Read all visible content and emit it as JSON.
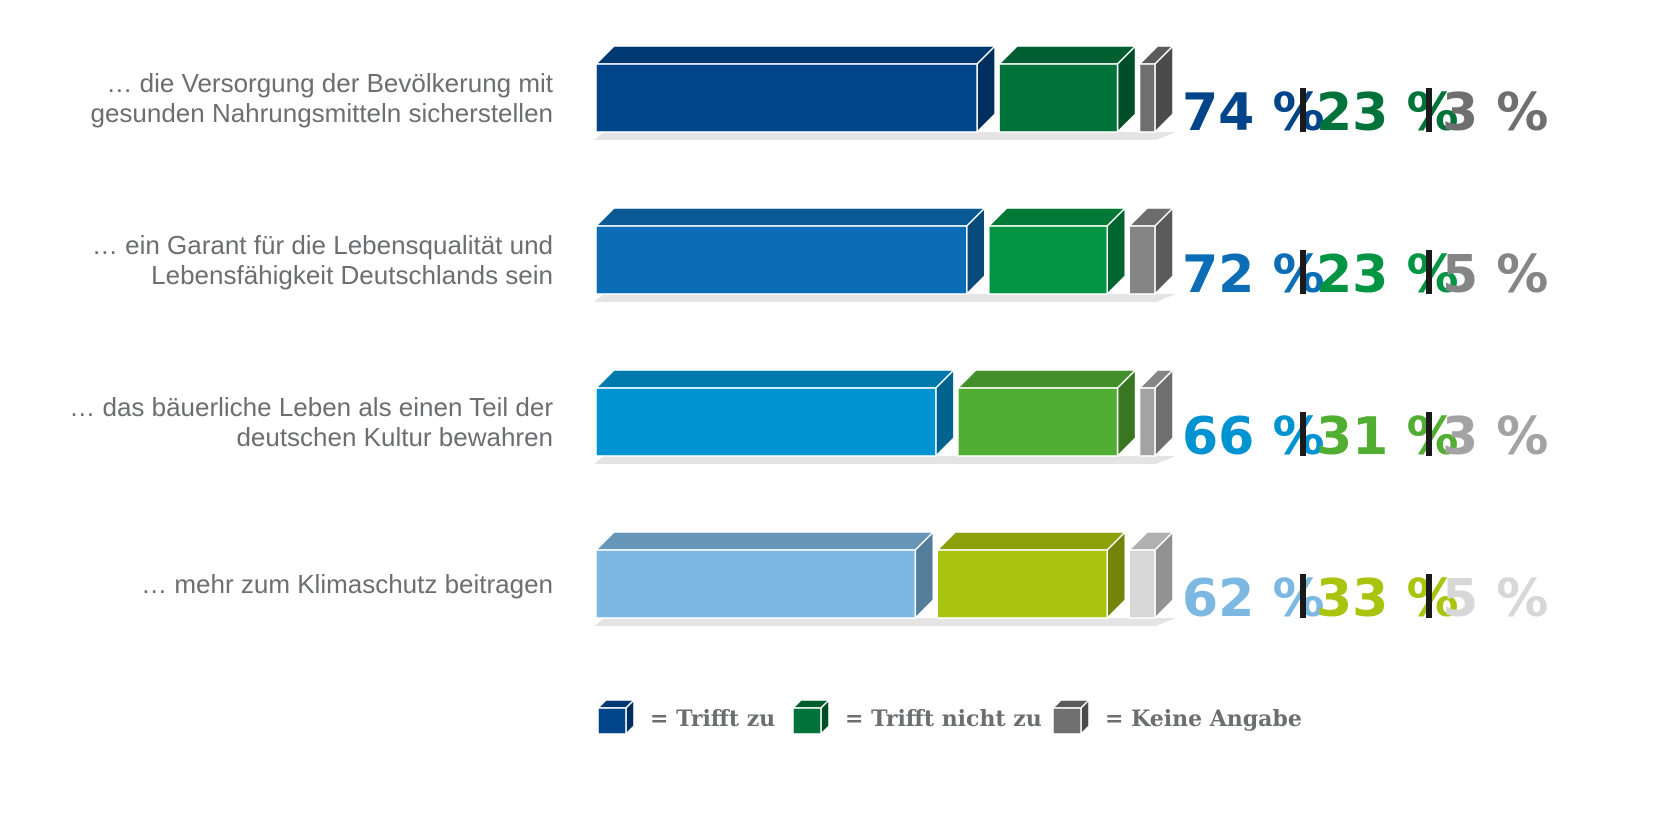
{
  "chart_data": {
    "type": "bar",
    "stacked": true,
    "orientation": "horizontal",
    "categories": [
      [
        "… die Versorgung der Bevölkerung mit",
        "gesunden Nahrungsmitteln sicherstellen"
      ],
      [
        "… ein Garant für die Lebensqualität und",
        "Lebensfähigkeit Deutschlands sein"
      ],
      [
        "… das bäuerliche Leben als einen Teil der",
        "deutschen Kultur bewahren"
      ],
      [
        "… mehr zum Klimaschutz beitragen"
      ]
    ],
    "series": [
      {
        "name": "= Trifft zu",
        "values": [
          74,
          72,
          66,
          62
        ]
      },
      {
        "name": "= Trifft nicht zu",
        "values": [
          23,
          23,
          31,
          33
        ]
      },
      {
        "name": "= Keine Angabe",
        "values": [
          3,
          5,
          3,
          5
        ]
      }
    ],
    "value_labels": [
      [
        "74 %",
        "23 %",
        "3 %"
      ],
      [
        "72 %",
        "23 %",
        "5 %"
      ],
      [
        "66 %",
        "31 %",
        "3 %"
      ],
      [
        "62 %",
        "33 %",
        "5 %"
      ]
    ],
    "legend_position": "bottom",
    "grid": false,
    "colors": {
      "rows": [
        {
          "yes": "#00448a",
          "no": "#00733a",
          "na": "#6f6f6f"
        },
        {
          "yes": "#0a6db5",
          "no": "#009443",
          "na": "#858585"
        },
        {
          "yes": "#0093d2",
          "no": "#52ae32",
          "na": "#a3a3a3"
        },
        {
          "yes": "#7cb8e2",
          "no": "#a8c40f",
          "na": "#d7d7d7"
        }
      ],
      "label_text": "#6d6e70",
      "separator": "#1a1a1a",
      "legend": {
        "yes": "#00448a",
        "no": "#00733a",
        "na": "#6f6f6f"
      }
    }
  }
}
